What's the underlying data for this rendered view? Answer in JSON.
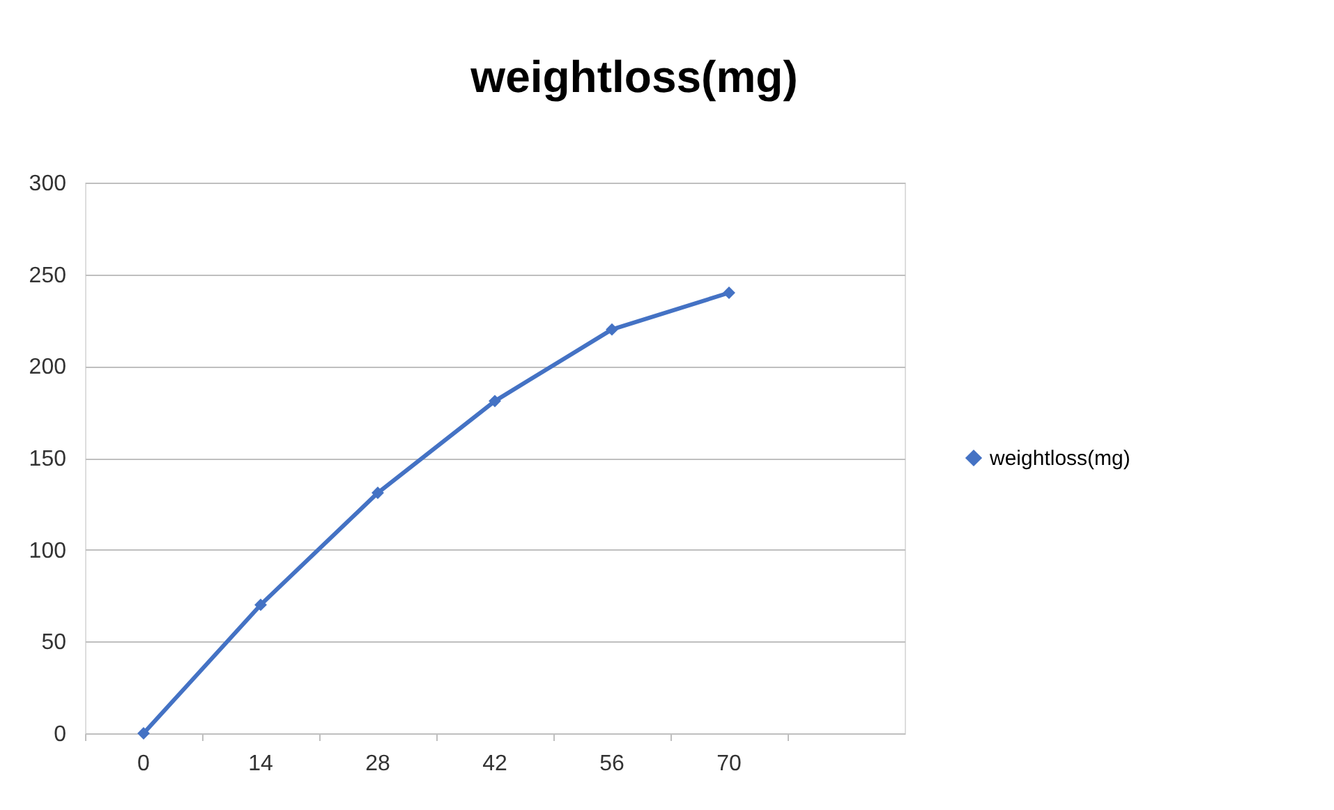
{
  "chart_data": {
    "type": "line",
    "title": "weightloss(mg)",
    "categories": [
      "0",
      "14",
      "28",
      "42",
      "56",
      "70",
      null
    ],
    "series": [
      {
        "name": "weightloss(mg)",
        "color": "#4472c4",
        "values": [
          0,
          70,
          131,
          181,
          220,
          240,
          null
        ]
      }
    ],
    "ylim": [
      0,
      300
    ],
    "yticks": [
      0,
      50,
      100,
      150,
      200,
      250,
      300
    ],
    "grid": "y",
    "legend": "right",
    "marker": "diamond",
    "line_style": "solid"
  }
}
